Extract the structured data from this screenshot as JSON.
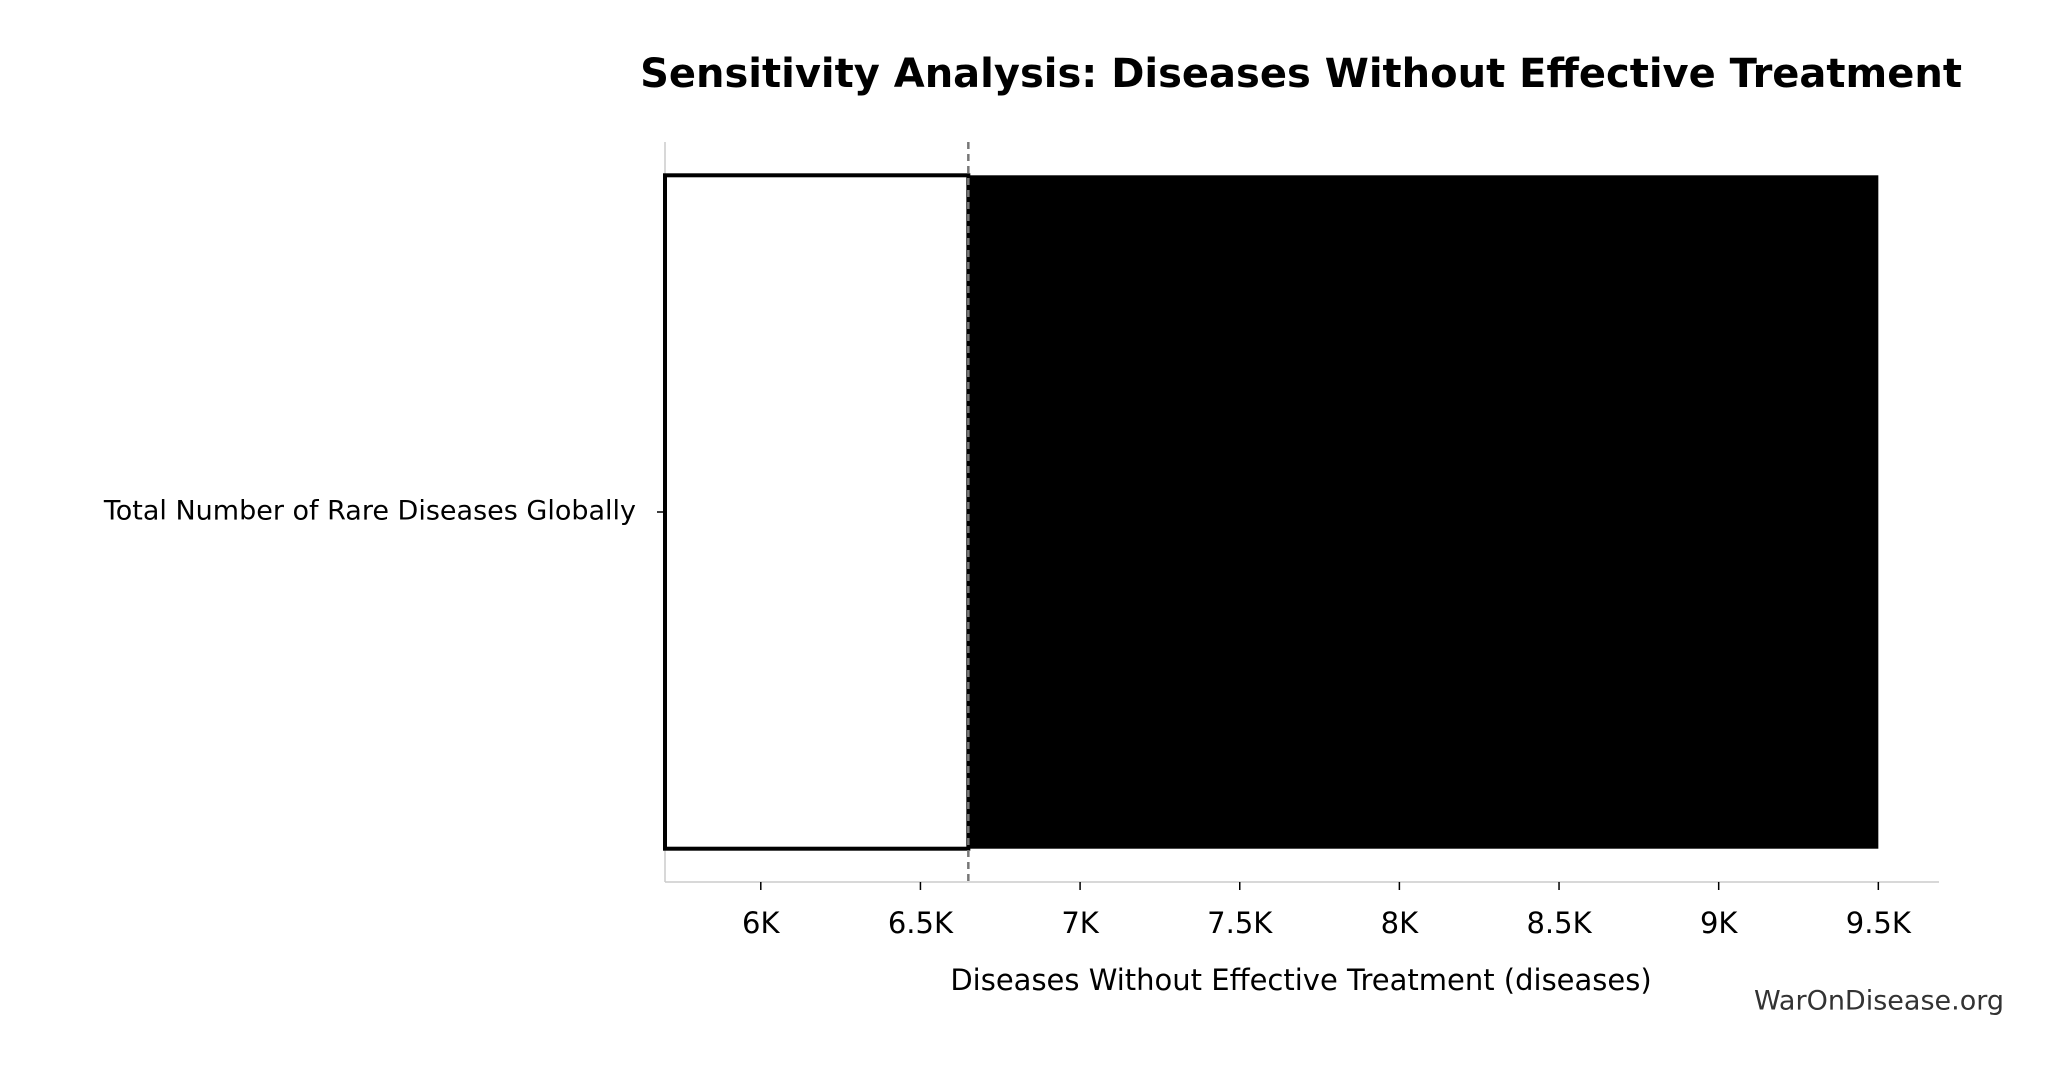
{
  "chart_data": {
    "type": "tornado",
    "title": "Sensitivity Analysis: Diseases Without Effective Treatment",
    "xlabel": "Diseases Without Effective Treatment (diseases)",
    "watermark": "WarOnDisease.org",
    "categories": [
      "Total Number of Rare Diseases Globally"
    ],
    "low": [
      5700
    ],
    "high": [
      9500
    ],
    "baseline": 6650,
    "low_color": "#ffffff",
    "high_color": "#000000",
    "xlim": [
      5700,
      9690
    ],
    "xticks": [
      {
        "value": 6000,
        "label": "6K"
      },
      {
        "value": 6500,
        "label": "6.5K"
      },
      {
        "value": 7000,
        "label": "7K"
      },
      {
        "value": 7500,
        "label": "7.5K"
      },
      {
        "value": 8000,
        "label": "8K"
      },
      {
        "value": 8500,
        "label": "8.5K"
      },
      {
        "value": 9000,
        "label": "9K"
      },
      {
        "value": 9500,
        "label": "9.5K"
      }
    ]
  }
}
